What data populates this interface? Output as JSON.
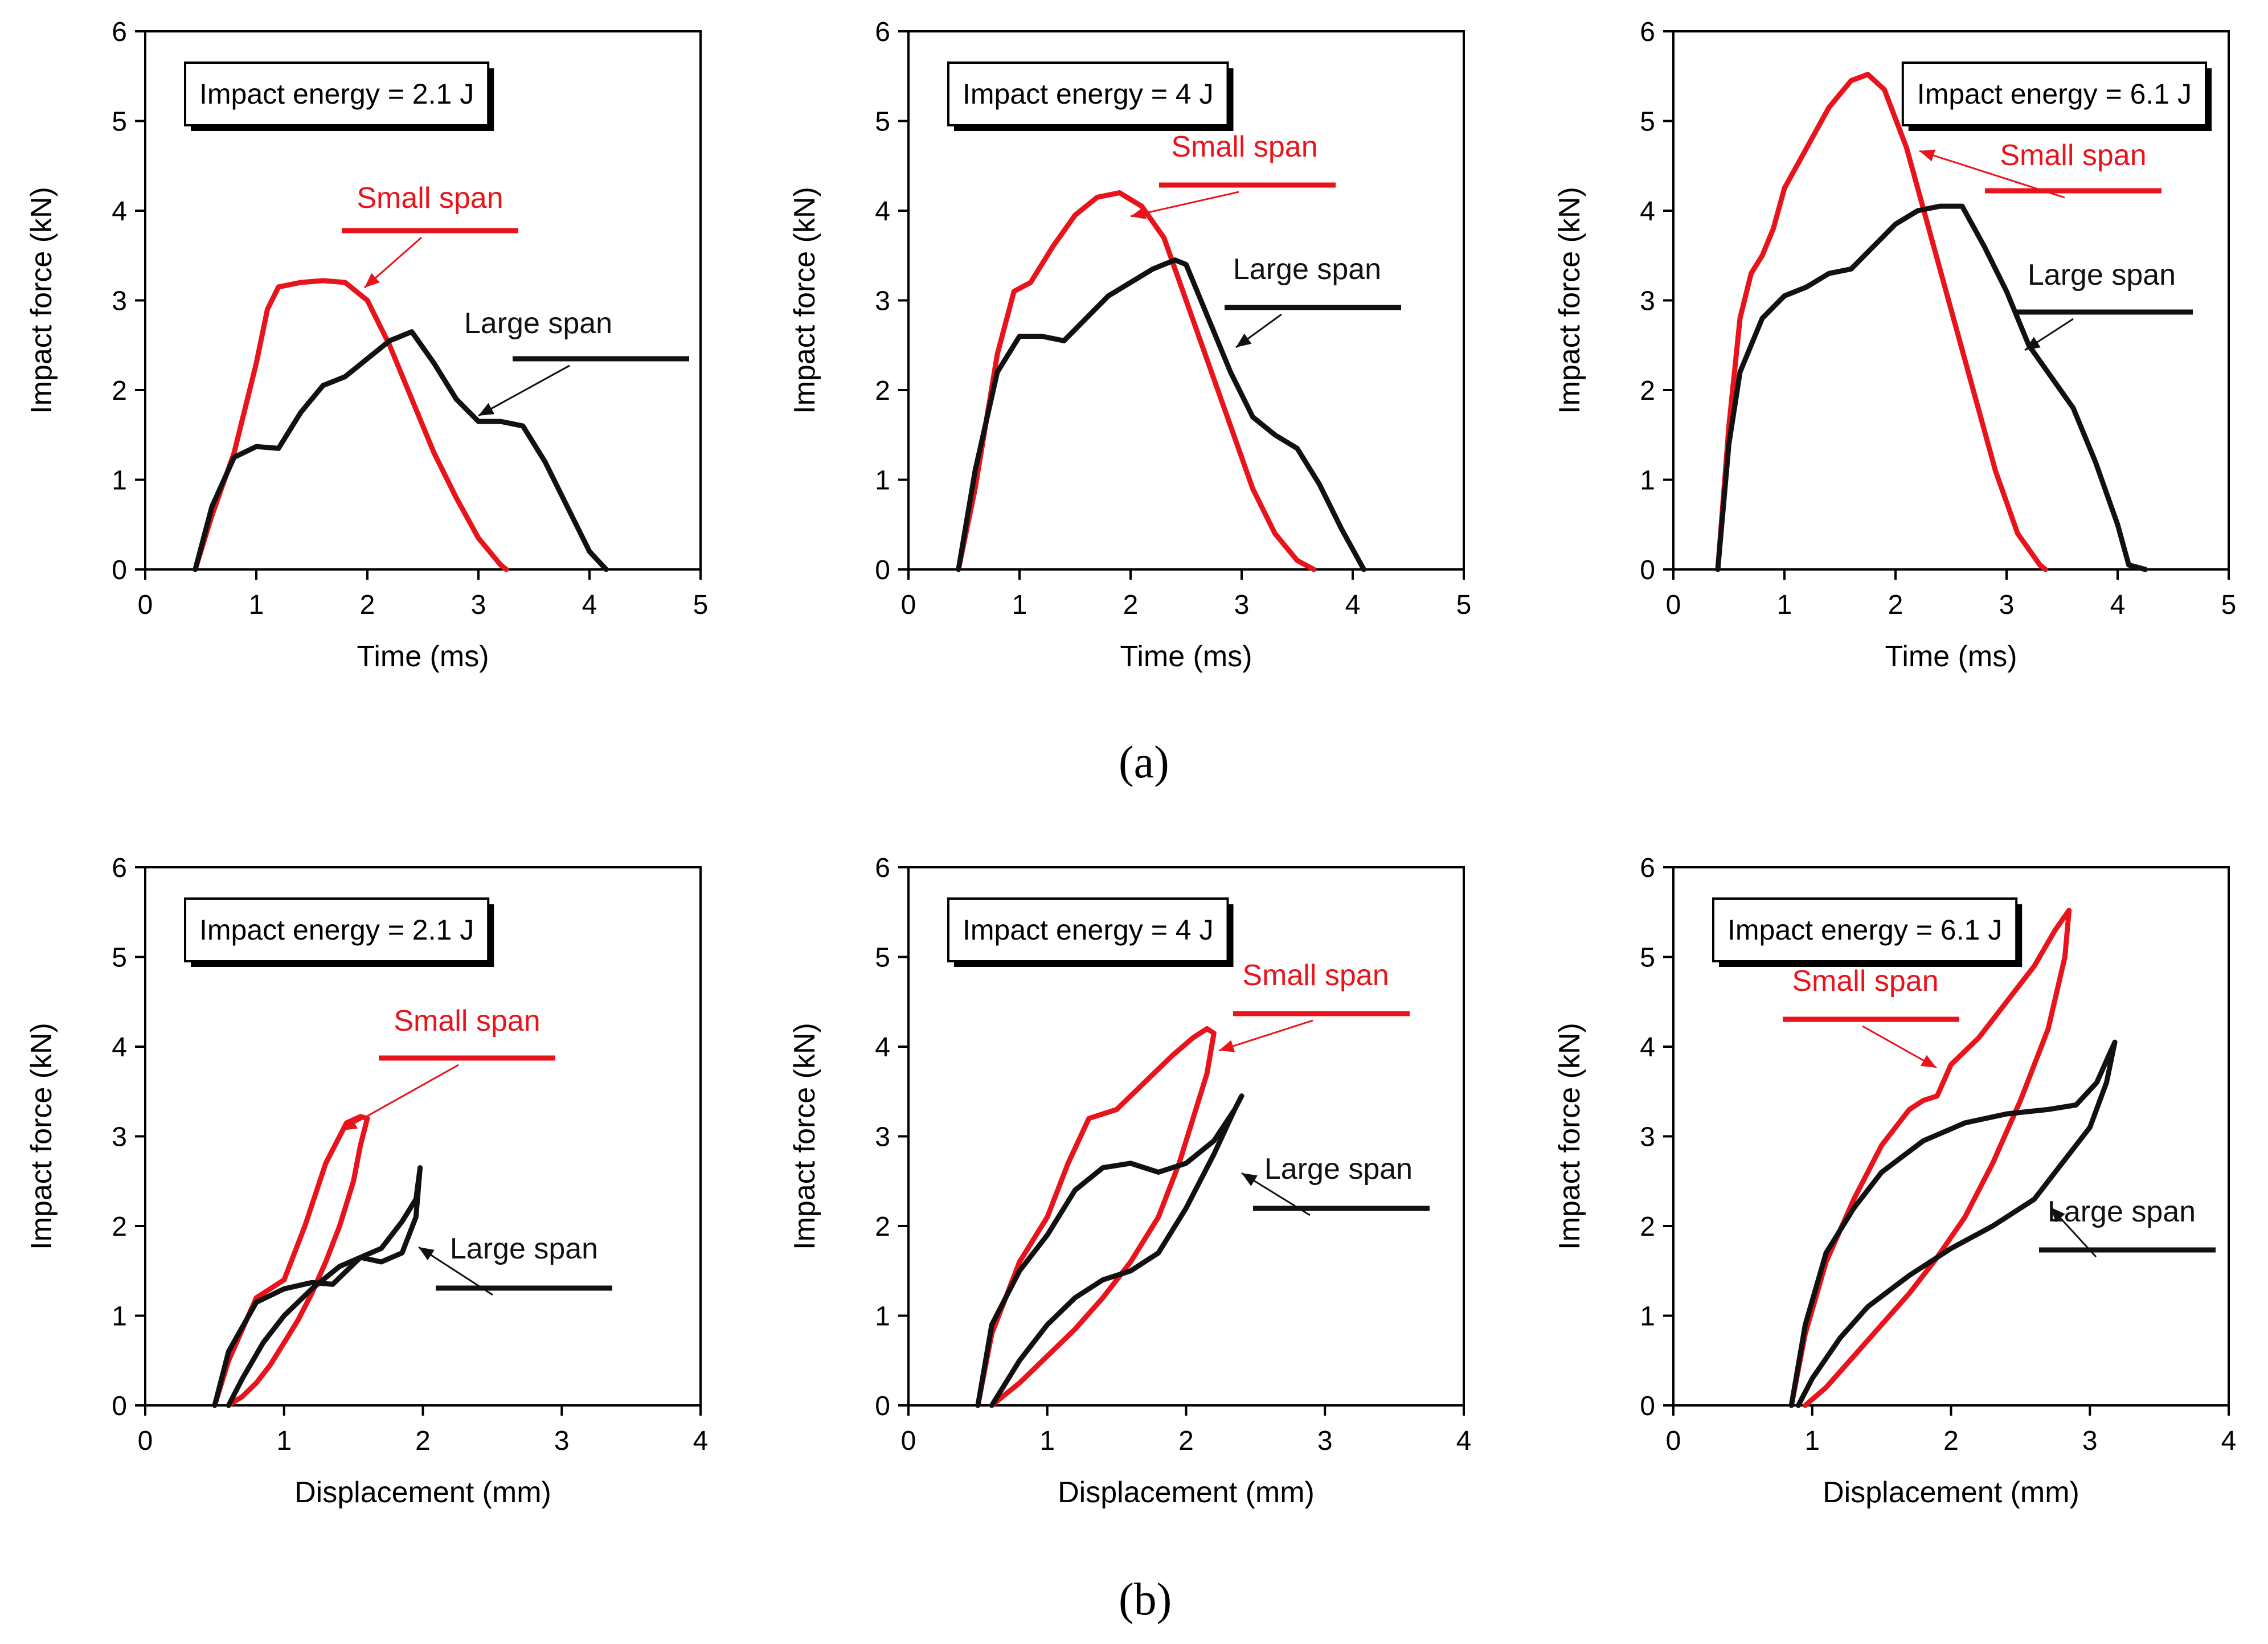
{
  "figure": {
    "caption_a": "(a)",
    "caption_b": "(b)"
  },
  "colors": {
    "small": "#e8131b",
    "large": "#111111"
  },
  "chart_data": [
    {
      "type": "line",
      "row": "a",
      "title": "Impact energy = 2.1 J",
      "xlabel": "Time (ms)",
      "ylabel": "Impact force (kN)",
      "xlim": [
        0,
        5
      ],
      "ylim": [
        0,
        6
      ],
      "xticks": [
        0,
        1,
        2,
        3,
        4,
        5
      ],
      "yticks": [
        0,
        1,
        2,
        3,
        4,
        5,
        6
      ],
      "series": [
        {
          "name": "Small span",
          "color": "#e8131b",
          "x": [
            0.45,
            0.6,
            0.8,
            1.0,
            1.1,
            1.2,
            1.4,
            1.6,
            1.8,
            2.0,
            2.2,
            2.4,
            2.6,
            2.8,
            3.0,
            3.2,
            3.25
          ],
          "y": [
            0,
            0.6,
            1.3,
            2.3,
            2.9,
            3.15,
            3.2,
            3.22,
            3.2,
            3.0,
            2.5,
            1.9,
            1.3,
            0.8,
            0.35,
            0.05,
            0
          ]
        },
        {
          "name": "Large span",
          "color": "#111111",
          "x": [
            0.45,
            0.6,
            0.8,
            1.0,
            1.2,
            1.4,
            1.6,
            1.8,
            2.0,
            2.2,
            2.4,
            2.6,
            2.8,
            3.0,
            3.2,
            3.4,
            3.6,
            3.8,
            4.0,
            4.15
          ],
          "y": [
            0,
            0.7,
            1.25,
            1.37,
            1.35,
            1.75,
            2.05,
            2.15,
            2.35,
            2.55,
            2.65,
            2.3,
            1.9,
            1.65,
            1.65,
            1.6,
            1.2,
            0.7,
            0.2,
            0
          ]
        }
      ],
      "annotations": {
        "small": "Small span",
        "large": "Large span"
      }
    },
    {
      "type": "line",
      "row": "a",
      "title": "Impact energy = 4 J",
      "xlabel": "Time (ms)",
      "ylabel": "Impact force (kN)",
      "xlim": [
        0,
        5
      ],
      "ylim": [
        0,
        6
      ],
      "xticks": [
        0,
        1,
        2,
        3,
        4,
        5
      ],
      "yticks": [
        0,
        1,
        2,
        3,
        4,
        5,
        6
      ],
      "series": [
        {
          "name": "Small span",
          "color": "#e8131b",
          "x": [
            0.45,
            0.6,
            0.8,
            0.95,
            1.1,
            1.3,
            1.5,
            1.7,
            1.9,
            2.1,
            2.3,
            2.5,
            2.7,
            2.9,
            3.1,
            3.3,
            3.5,
            3.65
          ],
          "y": [
            0,
            0.9,
            2.4,
            3.1,
            3.2,
            3.6,
            3.95,
            4.15,
            4.2,
            4.05,
            3.7,
            3.0,
            2.3,
            1.6,
            0.9,
            0.4,
            0.1,
            0
          ]
        },
        {
          "name": "Large span",
          "color": "#111111",
          "x": [
            0.45,
            0.6,
            0.8,
            1.0,
            1.2,
            1.4,
            1.6,
            1.8,
            2.0,
            2.2,
            2.4,
            2.5,
            2.7,
            2.9,
            3.1,
            3.3,
            3.5,
            3.7,
            3.9,
            4.1
          ],
          "y": [
            0,
            1.1,
            2.2,
            2.6,
            2.6,
            2.55,
            2.8,
            3.05,
            3.2,
            3.35,
            3.45,
            3.4,
            2.8,
            2.2,
            1.7,
            1.5,
            1.35,
            0.95,
            0.45,
            0
          ]
        }
      ],
      "annotations": {
        "small": "Small span",
        "large": "Large span"
      }
    },
    {
      "type": "line",
      "row": "a",
      "title": "Impact energy = 6.1 J",
      "xlabel": "Time (ms)",
      "ylabel": "Impact force (kN)",
      "xlim": [
        0,
        5
      ],
      "ylim": [
        0,
        6
      ],
      "xticks": [
        0,
        1,
        2,
        3,
        4,
        5
      ],
      "yticks": [
        0,
        1,
        2,
        3,
        4,
        5,
        6
      ],
      "series": [
        {
          "name": "Small span",
          "color": "#e8131b",
          "x": [
            0.4,
            0.5,
            0.6,
            0.7,
            0.8,
            0.9,
            1.0,
            1.2,
            1.4,
            1.6,
            1.75,
            1.9,
            2.1,
            2.3,
            2.5,
            2.7,
            2.9,
            3.1,
            3.3,
            3.35
          ],
          "y": [
            0,
            1.6,
            2.8,
            3.3,
            3.5,
            3.8,
            4.25,
            4.7,
            5.15,
            5.45,
            5.52,
            5.35,
            4.7,
            3.8,
            2.9,
            2.0,
            1.1,
            0.4,
            0.05,
            0
          ]
        },
        {
          "name": "Large span",
          "color": "#111111",
          "x": [
            0.4,
            0.5,
            0.6,
            0.8,
            1.0,
            1.2,
            1.4,
            1.6,
            1.8,
            2.0,
            2.2,
            2.4,
            2.6,
            2.8,
            3.0,
            3.2,
            3.4,
            3.6,
            3.8,
            4.0,
            4.1,
            4.25
          ],
          "y": [
            0,
            1.4,
            2.2,
            2.8,
            3.05,
            3.15,
            3.3,
            3.35,
            3.6,
            3.85,
            4.0,
            4.05,
            4.05,
            3.6,
            3.1,
            2.5,
            2.15,
            1.8,
            1.2,
            0.5,
            0.05,
            0
          ]
        }
      ],
      "annotations": {
        "small": "Small span",
        "large": "Large span"
      }
    },
    {
      "type": "line",
      "row": "b",
      "title": "Impact energy = 2.1 J",
      "xlabel": "Displacement (mm)",
      "ylabel": "Impact force (kN)",
      "xlim": [
        0,
        4
      ],
      "ylim": [
        0,
        6
      ],
      "xticks": [
        0,
        1,
        2,
        3,
        4
      ],
      "yticks": [
        0,
        1,
        2,
        3,
        4,
        5,
        6
      ],
      "series": [
        {
          "name": "Small span",
          "color": "#e8131b",
          "x": [
            0.5,
            0.6,
            0.8,
            1.0,
            1.15,
            1.3,
            1.45,
            1.55,
            1.6,
            1.55,
            1.5,
            1.4,
            1.3,
            1.2,
            1.1,
            1.0,
            0.9,
            0.8,
            0.7,
            0.6
          ],
          "y": [
            0,
            0.5,
            1.2,
            1.4,
            2.0,
            2.7,
            3.15,
            3.22,
            3.2,
            2.9,
            2.5,
            2.0,
            1.6,
            1.25,
            0.95,
            0.7,
            0.45,
            0.25,
            0.1,
            0
          ]
        },
        {
          "name": "Large span",
          "color": "#111111",
          "x": [
            0.5,
            0.6,
            0.8,
            1.0,
            1.2,
            1.35,
            1.45,
            1.55,
            1.7,
            1.85,
            1.95,
            1.98,
            1.95,
            1.85,
            1.7,
            1.55,
            1.4,
            1.2,
            1.0,
            0.85,
            0.7,
            0.6
          ],
          "y": [
            0,
            0.6,
            1.15,
            1.3,
            1.37,
            1.35,
            1.5,
            1.65,
            1.6,
            1.7,
            2.1,
            2.65,
            2.3,
            2.05,
            1.75,
            1.65,
            1.55,
            1.3,
            1.0,
            0.7,
            0.3,
            0
          ]
        }
      ],
      "annotations": {
        "small": "Small span",
        "large": "Large span"
      }
    },
    {
      "type": "line",
      "row": "b",
      "title": "Impact energy = 4 J",
      "xlabel": "Displacement (mm)",
      "ylabel": "Impact force (kN)",
      "xlim": [
        0,
        4
      ],
      "ylim": [
        0,
        6
      ],
      "xticks": [
        0,
        1,
        2,
        3,
        4
      ],
      "yticks": [
        0,
        1,
        2,
        3,
        4,
        5,
        6
      ],
      "series": [
        {
          "name": "Small span",
          "color": "#e8131b",
          "x": [
            0.5,
            0.6,
            0.8,
            1.0,
            1.15,
            1.3,
            1.5,
            1.7,
            1.9,
            2.05,
            2.15,
            2.2,
            2.15,
            2.05,
            1.95,
            1.8,
            1.6,
            1.4,
            1.2,
            1.0,
            0.8,
            0.6
          ],
          "y": [
            0,
            0.8,
            1.6,
            2.1,
            2.7,
            3.2,
            3.3,
            3.6,
            3.9,
            4.1,
            4.2,
            4.15,
            3.7,
            3.2,
            2.7,
            2.1,
            1.6,
            1.2,
            0.85,
            0.55,
            0.25,
            0
          ]
        },
        {
          "name": "Large span",
          "color": "#111111",
          "x": [
            0.5,
            0.6,
            0.8,
            1.0,
            1.2,
            1.4,
            1.6,
            1.8,
            2.0,
            2.2,
            2.35,
            2.4,
            2.35,
            2.2,
            2.0,
            1.8,
            1.6,
            1.4,
            1.2,
            1.0,
            0.8,
            0.6
          ],
          "y": [
            0,
            0.9,
            1.5,
            1.9,
            2.4,
            2.65,
            2.7,
            2.6,
            2.7,
            2.95,
            3.3,
            3.45,
            3.3,
            2.8,
            2.2,
            1.7,
            1.5,
            1.4,
            1.2,
            0.9,
            0.5,
            0
          ]
        }
      ],
      "annotations": {
        "small": "Small span",
        "large": "Large span"
      }
    },
    {
      "type": "line",
      "row": "b",
      "title": "Impact energy = 6.1 J",
      "xlabel": "Displacement (mm)",
      "ylabel": "Impact force (kN)",
      "xlim": [
        0,
        4
      ],
      "ylim": [
        0,
        6
      ],
      "xticks": [
        0,
        1,
        2,
        3,
        4
      ],
      "yticks": [
        0,
        1,
        2,
        3,
        4,
        5,
        6
      ],
      "series": [
        {
          "name": "Small span",
          "color": "#e8131b",
          "x": [
            0.85,
            0.95,
            1.1,
            1.3,
            1.5,
            1.7,
            1.8,
            1.9,
            2.0,
            2.2,
            2.4,
            2.6,
            2.75,
            2.85,
            2.82,
            2.7,
            2.5,
            2.3,
            2.1,
            1.9,
            1.7,
            1.5,
            1.3,
            1.1,
            0.95
          ],
          "y": [
            0,
            0.8,
            1.6,
            2.3,
            2.9,
            3.3,
            3.4,
            3.45,
            3.8,
            4.1,
            4.5,
            4.9,
            5.3,
            5.52,
            5.0,
            4.2,
            3.4,
            2.7,
            2.1,
            1.65,
            1.25,
            0.9,
            0.55,
            0.2,
            0
          ]
        },
        {
          "name": "Large span",
          "color": "#111111",
          "x": [
            0.85,
            0.95,
            1.1,
            1.3,
            1.5,
            1.8,
            2.1,
            2.4,
            2.7,
            2.9,
            3.05,
            3.15,
            3.18,
            3.12,
            3.0,
            2.8,
            2.6,
            2.3,
            2.0,
            1.7,
            1.4,
            1.2,
            1.0,
            0.9
          ],
          "y": [
            0,
            0.9,
            1.7,
            2.2,
            2.6,
            2.95,
            3.15,
            3.25,
            3.3,
            3.35,
            3.6,
            3.95,
            4.05,
            3.6,
            3.1,
            2.7,
            2.3,
            2.0,
            1.75,
            1.45,
            1.1,
            0.75,
            0.3,
            0
          ]
        }
      ],
      "annotations": {
        "small": "Small span",
        "large": "Large span"
      }
    }
  ]
}
